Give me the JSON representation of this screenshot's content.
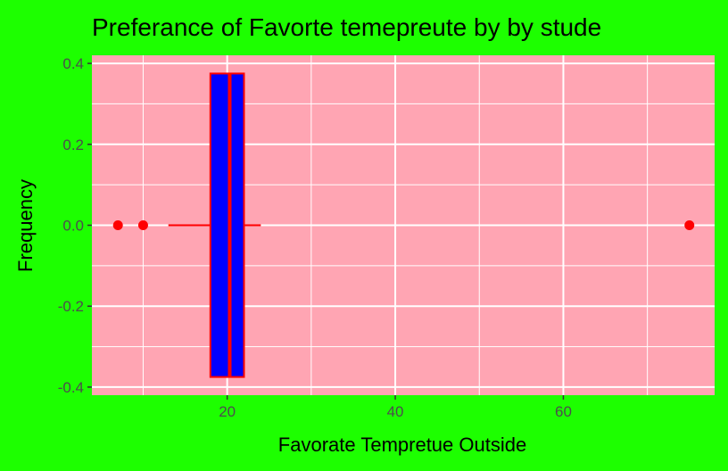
{
  "chart_data": {
    "type": "boxplot",
    "title": "Preferance of Favorte temepreute by by stude",
    "xlabel": "Favorate Tempretue Outside",
    "ylabel": "Frequency",
    "xlim": [
      3.9,
      78
    ],
    "ylim": [
      -0.42,
      0.42
    ],
    "x_ticks": [
      20,
      40,
      60
    ],
    "y_ticks": [
      -0.4,
      -0.2,
      0.0,
      0.2,
      0.4
    ],
    "y_tick_labels": [
      "-0.4",
      "-0.2",
      "0.0",
      "0.2",
      "0.4"
    ],
    "grid": true,
    "box": {
      "q1": 18,
      "median": 20.3,
      "q3": 22,
      "whisker_low": 13,
      "whisker_high": 24,
      "outliers": [
        7,
        10,
        75
      ],
      "y_center": 0,
      "half_height": 0.375
    },
    "colors": {
      "background": "#1dff00",
      "panel": "#ffa5b3",
      "grid": "#ffffff",
      "box_fill": "#0000ff",
      "box_outline": "#ff0000",
      "outlier": "#ff0000",
      "whisker": "#ff0000"
    }
  }
}
